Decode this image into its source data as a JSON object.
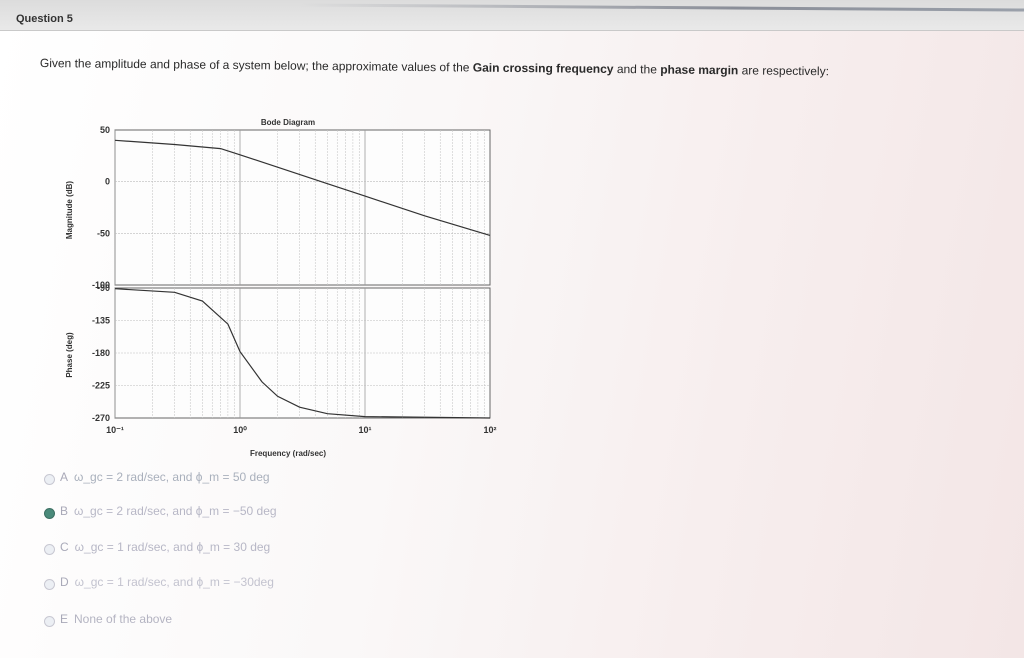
{
  "header": {
    "question_number": "Question 5"
  },
  "question": {
    "prefix": "Given the amplitude and phase of a system below; the approximate values of the ",
    "term1": "Gain crossing frequency",
    "middle": " and the ",
    "term2": "phase margin",
    "suffix": " are respectively:"
  },
  "chart_data": {
    "type": "line",
    "title": "Bode Diagram",
    "xlabel": "Frequency (rad/sec)",
    "x_scale": "log",
    "x_ticks": [
      "10⁻¹",
      "10⁰",
      "10¹",
      "10²"
    ],
    "panels": [
      {
        "name": "magnitude",
        "ylabel": "Magnitude (dB)",
        "ylim": [
          -100,
          50
        ],
        "y_ticks": [
          "50",
          "0",
          "-50",
          "-100"
        ],
        "series": [
          {
            "x": [
              0.1,
              0.3,
              0.7,
              1,
              2,
              5,
              10,
              30,
              100
            ],
            "values": [
              40,
              36,
              32,
              26,
              14,
              -2,
              -14,
              -33,
              -52
            ]
          }
        ]
      },
      {
        "name": "phase",
        "ylabel": "Phase (deg)",
        "ylim": [
          -270,
          -90
        ],
        "y_ticks": [
          "-90",
          "-135",
          "-180",
          "-225",
          "-270"
        ],
        "series": [
          {
            "x": [
              0.1,
              0.3,
              0.5,
              0.8,
              1,
              1.5,
              2,
              3,
              5,
              10,
              100
            ],
            "values": [
              -91,
              -96,
              -108,
              -140,
              -178,
              -220,
              -240,
              -255,
              -264,
              -268,
              -270
            ]
          }
        ]
      }
    ]
  },
  "options": [
    {
      "letter": "A",
      "text": "ω_gc = 2 rad/sec, and  ϕ_m = 50 deg",
      "selected": false
    },
    {
      "letter": "B",
      "text": "ω_gc = 2 rad/sec, and  ϕ_m = −50 deg",
      "selected": true
    },
    {
      "letter": "C",
      "text": "ω_gc = 1 rad/sec, and  ϕ_m = 30 deg",
      "selected": false
    },
    {
      "letter": "D",
      "text": "ω_gc = 1 rad/sec, and  ϕ_m = −30deg",
      "selected": false
    },
    {
      "letter": "E",
      "text": "None of the above",
      "selected": false
    }
  ]
}
